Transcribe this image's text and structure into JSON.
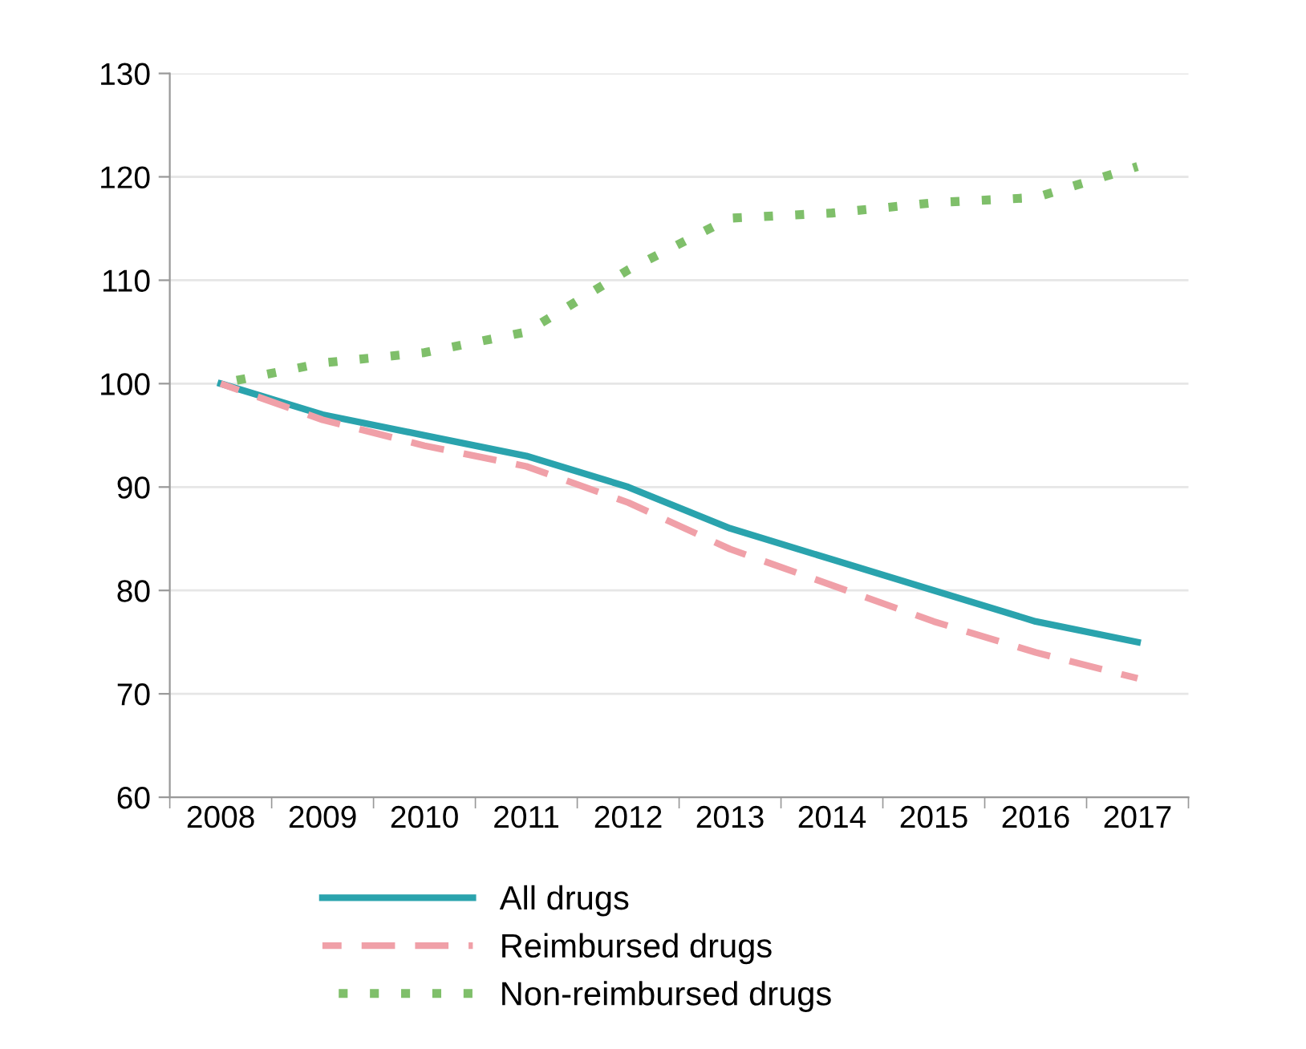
{
  "chart_data": {
    "type": "line",
    "categories": [
      "2008",
      "2009",
      "2010",
      "2011",
      "2012",
      "2013",
      "2014",
      "2015",
      "2016",
      "2017"
    ],
    "series": [
      {
        "name": "All drugs",
        "color": "#2aa3ad",
        "line_style": "solid",
        "values": [
          100,
          97,
          95,
          93,
          90,
          86,
          83,
          80,
          77,
          75
        ]
      },
      {
        "name": "Reimbursed drugs",
        "color": "#f0a0a8",
        "line_style": "dashed",
        "values": [
          100,
          96.5,
          94,
          92,
          88.5,
          84,
          80.5,
          77,
          74,
          71.5
        ]
      },
      {
        "name": "Non-reimbursed drugs",
        "color": "#7fbf6a",
        "line_style": "dotted",
        "values": [
          100,
          102,
          103,
          105,
          111,
          116,
          116.5,
          117.5,
          118,
          121
        ]
      }
    ],
    "ylim": [
      60,
      130
    ],
    "yticks": [
      60,
      70,
      80,
      90,
      100,
      110,
      120,
      130
    ],
    "grid": "y",
    "legend": "bottom",
    "marker": "none"
  }
}
